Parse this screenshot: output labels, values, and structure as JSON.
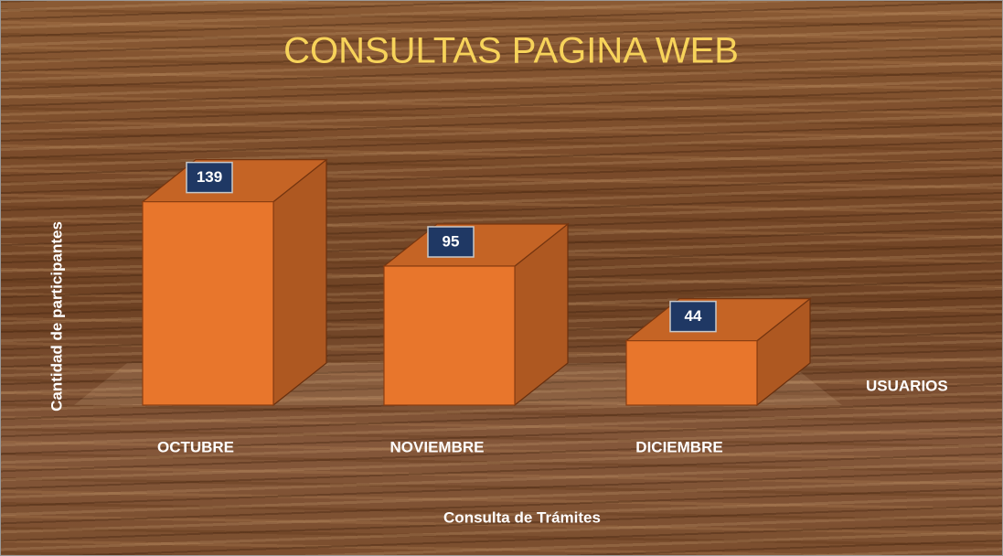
{
  "chart_data": {
    "type": "bar3d",
    "title": "CONSULTAS PAGINA WEB",
    "x_label": "Consulta de Trámites",
    "y_label": "Cantidad de participantes",
    "categories": [
      "OCTUBRE",
      "NOVIEMBRE",
      "DICIEMBRE"
    ],
    "series": [
      {
        "name": "USUARIOS",
        "color": "#e8762c",
        "values": [
          139,
          95,
          44
        ]
      }
    ]
  }
}
